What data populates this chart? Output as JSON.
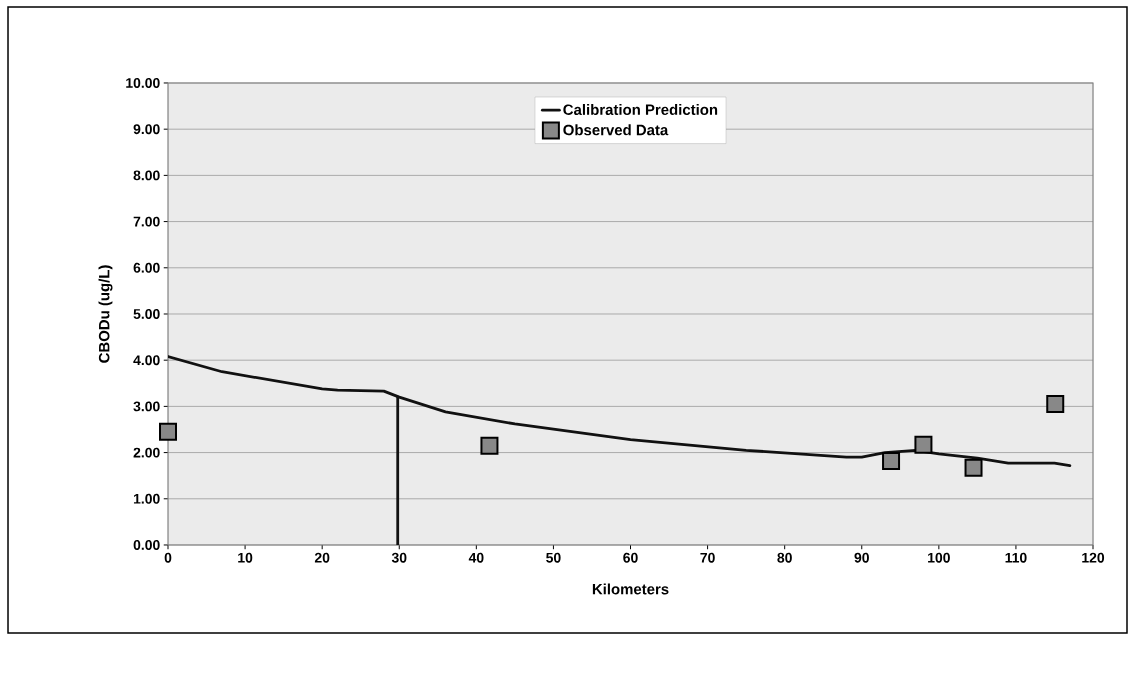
{
  "chart_data": {
    "type": "line",
    "xlabel": "Kilometers",
    "ylabel": "CBODu (ug/L)",
    "xlim": [
      0,
      120
    ],
    "xticks": [
      0,
      10,
      20,
      30,
      40,
      50,
      60,
      70,
      80,
      90,
      100,
      110,
      120
    ],
    "ylim": [
      0,
      10
    ],
    "yticks": [
      {
        "value": 0,
        "label": "0.00"
      },
      {
        "value": 1,
        "label": "1.00"
      },
      {
        "value": 2,
        "label": "2.00"
      },
      {
        "value": 3,
        "label": "3.00"
      },
      {
        "value": 4,
        "label": "4.00"
      },
      {
        "value": 5,
        "label": "5.00"
      },
      {
        "value": 6,
        "label": "6.00"
      },
      {
        "value": 7,
        "label": "7.00"
      },
      {
        "value": 8,
        "label": "8.00"
      },
      {
        "value": 9,
        "label": "9.00"
      },
      {
        "value": 10,
        "label": "10.00"
      }
    ],
    "grid": "y",
    "legend": "top",
    "series": [
      {
        "name": "Calibration Prediction",
        "color": "#111111",
        "x": [
          0,
          7,
          20,
          22,
          28,
          30,
          36,
          45,
          60,
          75,
          88,
          90,
          93,
          97,
          100,
          105,
          109,
          115,
          117
        ],
        "values": [
          4.08,
          3.75,
          3.38,
          3.35,
          3.33,
          3.2,
          2.88,
          2.62,
          2.28,
          2.05,
          1.9,
          1.9,
          2.0,
          2.05,
          1.97,
          1.88,
          1.77,
          1.77,
          1.72
        ]
      },
      {
        "name": "Observed Data",
        "type": "scatter",
        "marker": "square",
        "color": "#888888",
        "x": [
          0,
          41.7,
          93.8,
          98,
          104.5,
          115.1
        ],
        "values": [
          2.45,
          2.15,
          1.82,
          2.17,
          1.67,
          3.05
        ]
      },
      {
        "color": "#111111",
        "x": [
          29.8,
          29.8
        ],
        "values": [
          3.2,
          0
        ]
      }
    ]
  }
}
